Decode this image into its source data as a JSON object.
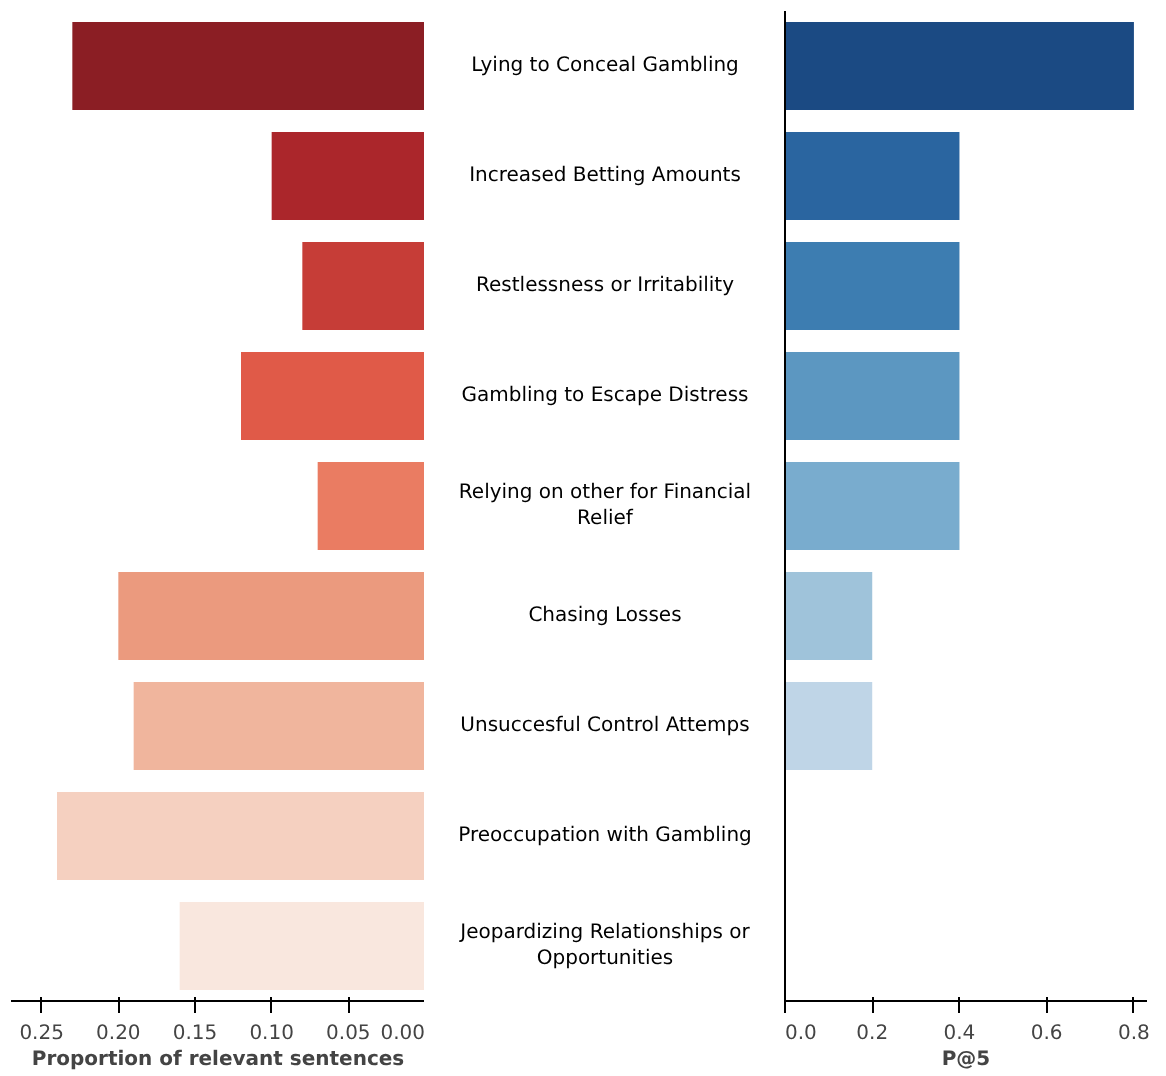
{
  "chart_data": [
    {
      "type": "bar",
      "orientation": "horizontal",
      "xlabel": "Proportion of relevant sentences",
      "categories": [
        "Lying to Conceal Gambling",
        "Increased Betting Amounts",
        "Restlessness or Irritability",
        "Gambling to Escape Distress",
        "Relying on other for Financial Relief",
        "Chasing Losses",
        "Unsuccesful Control Attemps",
        "Preoccupation with Gambling",
        "Jeopardizing Relationships or Opportunities"
      ],
      "values": [
        0.23,
        0.1,
        0.08,
        0.12,
        0.07,
        0.2,
        0.19,
        0.24,
        0.16
      ],
      "colors": [
        "#8b1e24",
        "#ab262b",
        "#c63d37",
        "#e05a48",
        "#ea7c62",
        "#eb9a7e",
        "#f0b59d",
        "#f5d0c0",
        "#f9e7de"
      ],
      "xlim": [
        0.27,
        0
      ],
      "xticks": [
        {
          "value": 0.25,
          "label": "0.25"
        },
        {
          "value": 0.2,
          "label": "0.20"
        },
        {
          "value": 0.15,
          "label": "0.15"
        },
        {
          "value": 0.1,
          "label": "0.10"
        },
        {
          "value": 0.05,
          "label": "0.05"
        },
        {
          "value": 0,
          "label": "0.00"
        }
      ],
      "grid": false
    },
    {
      "type": "bar",
      "orientation": "horizontal",
      "xlabel": "P@5",
      "categories": [
        "Lying to Conceal Gambling",
        "Increased Betting Amounts",
        "Restlessness or Irritability",
        "Gambling to Escape Distress",
        "Relying on other for Financial Relief",
        "Chasing Losses",
        "Unsuccesful Control Attemps",
        "Preoccupation with Gambling",
        "Jeopardizing Relationships or Opportunities"
      ],
      "values": [
        0.8,
        0.4,
        0.4,
        0.4,
        0.4,
        0.2,
        0.2,
        0,
        0
      ],
      "colors": [
        "#1b4a83",
        "#2a65a0",
        "#3d7db1",
        "#5c97c1",
        "#79acce",
        "#9fc3da",
        "#bfd5e7",
        "#d9e7f2",
        "#eef4fa"
      ],
      "xlim": [
        0,
        0.83
      ],
      "xticks": [
        {
          "value": 0,
          "label": "0.0"
        },
        {
          "value": 0.2,
          "label": "0.2"
        },
        {
          "value": 0.4,
          "label": "0.4"
        },
        {
          "value": 0.6,
          "label": "0.6"
        },
        {
          "value": 0.8,
          "label": "0.8"
        }
      ],
      "tick_labels": "x",
      "grid": false
    }
  ]
}
